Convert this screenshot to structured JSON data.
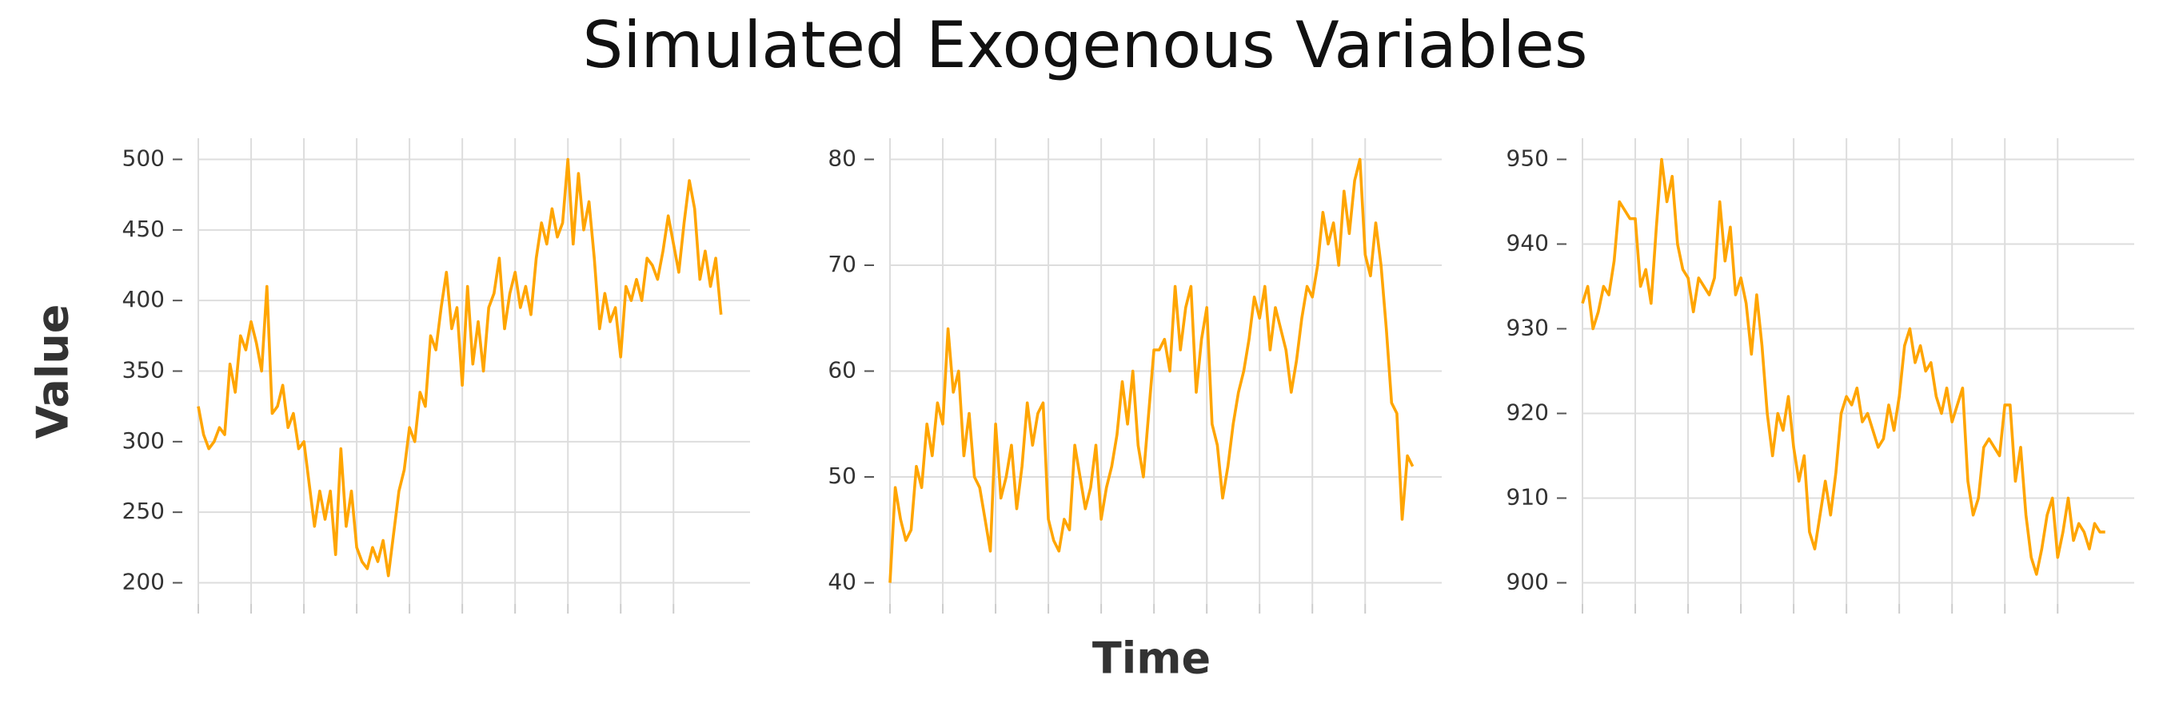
{
  "title": "Simulated Exogenous Variables",
  "xlabel": "Time",
  "ylabel": "Value",
  "chart_data": [
    {
      "type": "line",
      "color": "#FFA500",
      "grid": true,
      "xlim": [
        0,
        104.5
      ],
      "xticks": [
        0,
        10,
        20,
        30,
        40,
        50,
        60,
        70,
        80,
        90
      ],
      "ylim": [
        185,
        515
      ],
      "yticks": [
        200,
        250,
        300,
        350,
        400,
        450,
        500
      ],
      "values": [
        325,
        305,
        295,
        300,
        310,
        305,
        355,
        335,
        375,
        365,
        385,
        370,
        350,
        410,
        320,
        325,
        340,
        310,
        320,
        295,
        300,
        270,
        240,
        265,
        245,
        265,
        220,
        295,
        240,
        265,
        225,
        215,
        210,
        225,
        215,
        230,
        205,
        235,
        265,
        280,
        310,
        300,
        335,
        325,
        375,
        365,
        395,
        420,
        380,
        395,
        340,
        410,
        355,
        385,
        350,
        395,
        405,
        430,
        380,
        405,
        420,
        395,
        410,
        390,
        430,
        455,
        440,
        465,
        445,
        455,
        500,
        440,
        490,
        450,
        470,
        430,
        380,
        405,
        385,
        395,
        360,
        410,
        400,
        415,
        400,
        430,
        425,
        415,
        435,
        460,
        440,
        420,
        455,
        485,
        465,
        415,
        435,
        410,
        430,
        390
      ]
    },
    {
      "type": "line",
      "color": "#FFA500",
      "grid": true,
      "xlim": [
        0,
        104.5
      ],
      "xticks": [
        0,
        10,
        20,
        30,
        40,
        50,
        60,
        70,
        80,
        90
      ],
      "ylim": [
        38,
        82
      ],
      "yticks": [
        40,
        50,
        60,
        70,
        80
      ],
      "values": [
        40,
        49,
        46,
        44,
        45,
        51,
        49,
        55,
        52,
        57,
        55,
        64,
        58,
        60,
        52,
        56,
        50,
        49,
        46,
        43,
        55,
        48,
        50,
        53,
        47,
        51,
        57,
        53,
        56,
        57,
        46,
        44,
        43,
        46,
        45,
        53,
        50,
        47,
        49,
        53,
        46,
        49,
        51,
        54,
        59,
        55,
        60,
        53,
        50,
        56,
        62,
        62,
        63,
        60,
        68,
        62,
        66,
        68,
        58,
        63,
        66,
        55,
        53,
        48,
        51,
        55,
        58,
        60,
        63,
        67,
        65,
        68,
        62,
        66,
        64,
        62,
        58,
        61,
        65,
        68,
        67,
        70,
        75,
        72,
        74,
        70,
        77,
        73,
        78,
        80,
        71,
        69,
        74,
        70,
        64,
        57,
        56,
        46,
        52,
        51
      ]
    },
    {
      "type": "line",
      "color": "#FFA500",
      "grid": true,
      "xlim": [
        0,
        104.5
      ],
      "xticks": [
        0,
        10,
        20,
        30,
        40,
        50,
        60,
        70,
        80,
        90
      ],
      "ylim": [
        897.5,
        952.5
      ],
      "yticks": [
        900,
        910,
        920,
        930,
        940,
        950
      ],
      "values": [
        933,
        935,
        930,
        932,
        935,
        934,
        938,
        945,
        944,
        943,
        943,
        935,
        937,
        933,
        942,
        950,
        945,
        948,
        940,
        937,
        936,
        932,
        936,
        935,
        934,
        936,
        945,
        938,
        942,
        934,
        936,
        933,
        927,
        934,
        928,
        920,
        915,
        920,
        918,
        922,
        916,
        912,
        915,
        906,
        904,
        908,
        912,
        908,
        913,
        920,
        922,
        921,
        923,
        919,
        920,
        918,
        916,
        917,
        921,
        918,
        922,
        928,
        930,
        926,
        928,
        925,
        926,
        922,
        920,
        923,
        919,
        921,
        923,
        912,
        908,
        910,
        916,
        917,
        916,
        915,
        921,
        921,
        912,
        916,
        908,
        903,
        901,
        904,
        908,
        910,
        903,
        906,
        910,
        905,
        907,
        906,
        904,
        907,
        906,
        906
      ]
    }
  ]
}
